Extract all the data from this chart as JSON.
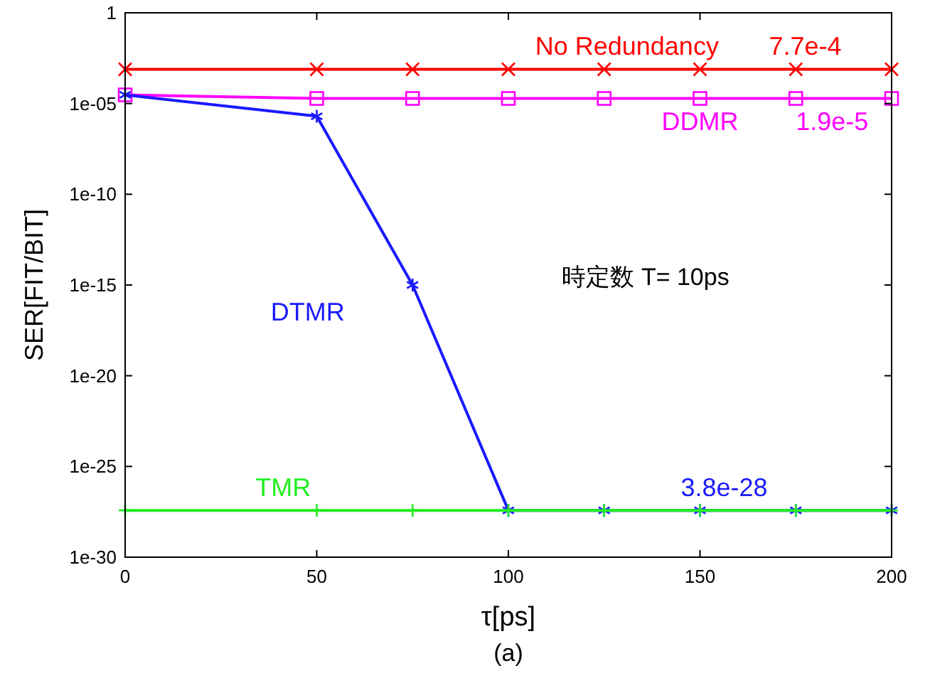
{
  "chart_data": {
    "type": "line",
    "xlabel": "τ[ps]",
    "ylabel": "SER[FIT/BIT]",
    "log": "y",
    "x": [
      0,
      50,
      75,
      100,
      125,
      150,
      175,
      200
    ],
    "series": [
      {
        "name": "No Redundancy",
        "color": "#ff0000",
        "marker": "cross",
        "values": [
          0.00077,
          0.00077,
          0.00077,
          0.00077,
          0.00077,
          0.00077,
          0.00077,
          0.00077
        ]
      },
      {
        "name": "DDMR",
        "color": "#ff00ff",
        "marker": "square",
        "values": [
          3e-05,
          1.9e-05,
          1.9e-05,
          1.9e-05,
          1.9e-05,
          1.9e-05,
          1.9e-05,
          1.9e-05
        ]
      },
      {
        "name": "DTMR",
        "color": "#1a1aff",
        "marker": "cross",
        "values": [
          3e-05,
          2e-06,
          1e-15,
          3.8e-28,
          3.8e-28,
          3.8e-28,
          3.8e-28,
          3.8e-28
        ]
      },
      {
        "name": "TMR",
        "color": "#22ee22",
        "marker": "cross",
        "values": [
          3.8e-28,
          3.8e-28,
          3.8e-28,
          3.8e-28,
          3.8e-28,
          3.8e-28,
          3.8e-28,
          3.8e-28
        ]
      }
    ],
    "xlim": [
      0,
      200
    ],
    "xticks": [
      0,
      50,
      100,
      150,
      200
    ],
    "ylim": [
      1e-30,
      1
    ],
    "yticks": [
      {
        "value": 1e-30,
        "label": "1e-30"
      },
      {
        "value": 1e-25,
        "label": "1e-25"
      },
      {
        "value": 1e-20,
        "label": "1e-20"
      },
      {
        "value": 1e-15,
        "label": "1e-15"
      },
      {
        "value": 1e-10,
        "label": "1e-10"
      },
      {
        "value": 1e-05,
        "label": "1e-05"
      },
      1
    ],
    "annotations": [
      {
        "text": "7.7e-4",
        "x": 168,
        "y": 0.00077
      },
      {
        "text": "1.9e-5",
        "x": 175,
        "y": 1.9e-05
      },
      {
        "text": "3.8e-28",
        "x": 145,
        "y": 3.8e-28
      },
      "時定数 T= 10ps",
      "(a)"
    ],
    "grid": false
  }
}
